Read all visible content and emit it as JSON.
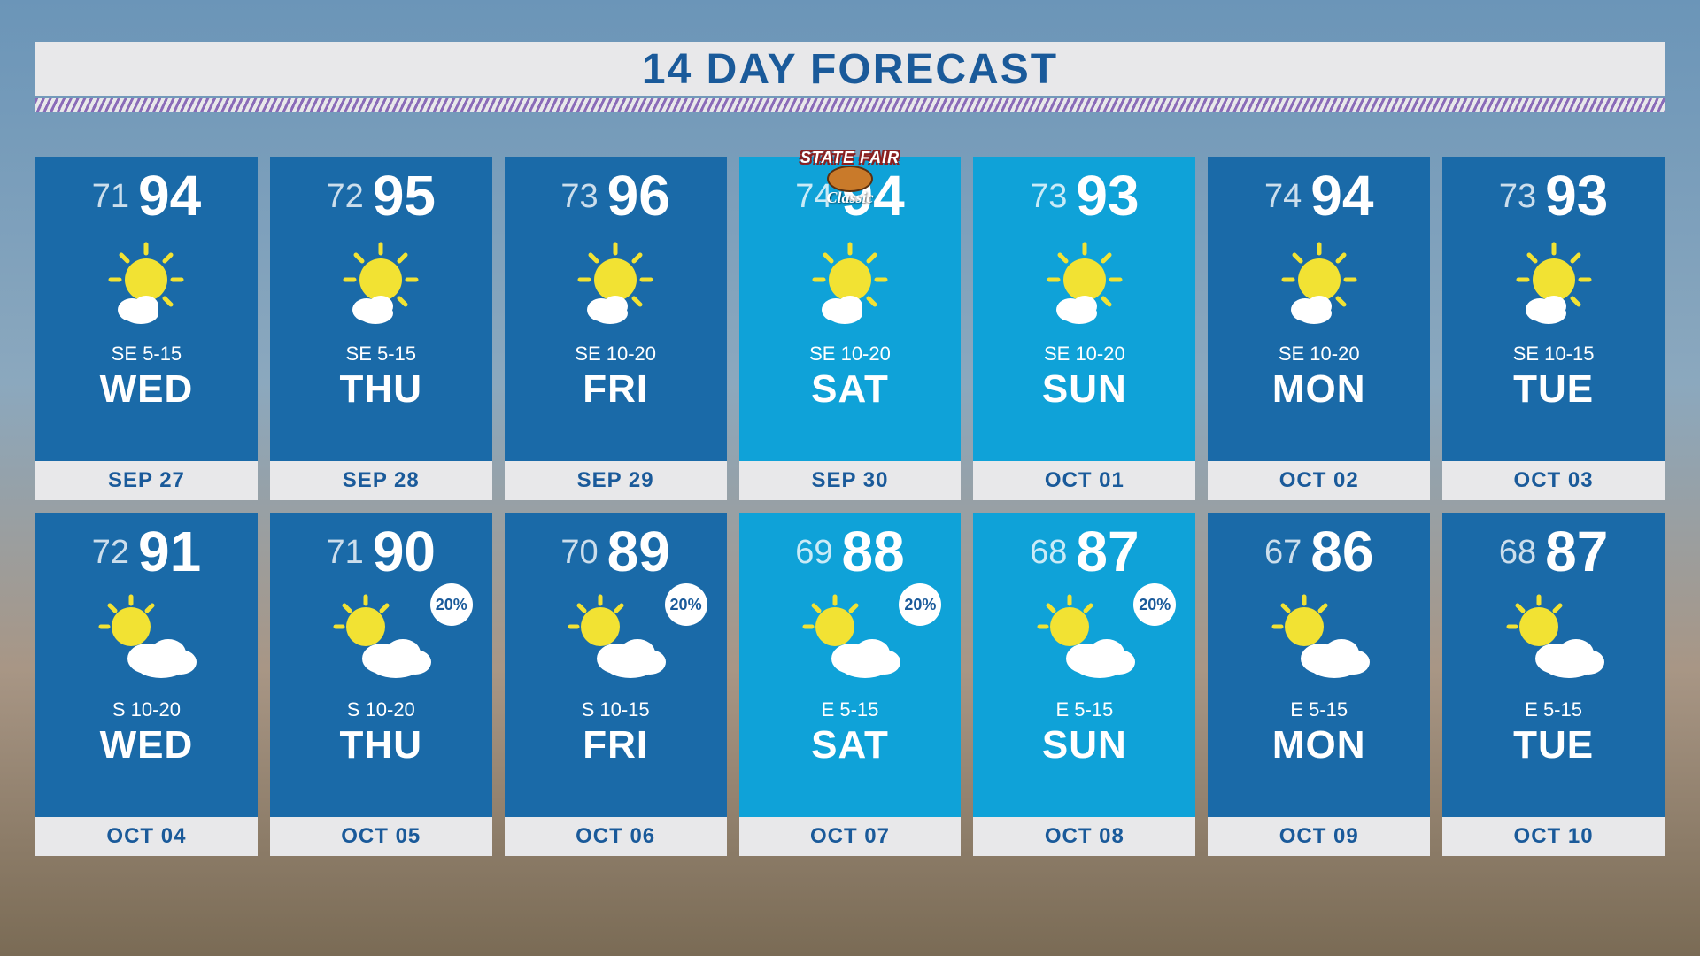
{
  "title": "14 DAY FORECAST",
  "badge": {
    "top": "STATE FAIR",
    "bottom": "Classic"
  },
  "colors": {
    "weekday_bg": "#1a6aa8",
    "weekend_bg": "#0fa2d8",
    "footer_bg": "#e8e8ea",
    "text_blue": "#1a5a9a",
    "white": "#ffffff",
    "sun_yellow": "#f2e233",
    "cloud_white": "#ffffff"
  },
  "days": [
    {
      "low": 71,
      "high": 94,
      "icon": "mostly-sunny",
      "precip": null,
      "wind": "SE 5-15",
      "day": "WED",
      "date": "SEP 27",
      "weekend": false
    },
    {
      "low": 72,
      "high": 95,
      "icon": "mostly-sunny",
      "precip": null,
      "wind": "SE 5-15",
      "day": "THU",
      "date": "SEP 28",
      "weekend": false
    },
    {
      "low": 73,
      "high": 96,
      "icon": "mostly-sunny",
      "precip": null,
      "wind": "SE 10-20",
      "day": "FRI",
      "date": "SEP 29",
      "weekend": false
    },
    {
      "low": 74,
      "high": 94,
      "icon": "mostly-sunny",
      "precip": null,
      "wind": "SE 10-20",
      "day": "SAT",
      "date": "SEP 30",
      "weekend": true
    },
    {
      "low": 73,
      "high": 93,
      "icon": "mostly-sunny",
      "precip": null,
      "wind": "SE 10-20",
      "day": "SUN",
      "date": "OCT 01",
      "weekend": true
    },
    {
      "low": 74,
      "high": 94,
      "icon": "mostly-sunny",
      "precip": null,
      "wind": "SE 10-20",
      "day": "MON",
      "date": "OCT 02",
      "weekend": false
    },
    {
      "low": 73,
      "high": 93,
      "icon": "mostly-sunny",
      "precip": null,
      "wind": "SE 10-15",
      "day": "TUE",
      "date": "OCT 03",
      "weekend": false
    },
    {
      "low": 72,
      "high": 91,
      "icon": "partly-cloudy",
      "precip": null,
      "wind": "S 10-20",
      "day": "WED",
      "date": "OCT 04",
      "weekend": false
    },
    {
      "low": 71,
      "high": 90,
      "icon": "partly-cloudy",
      "precip": "20%",
      "wind": "S 10-20",
      "day": "THU",
      "date": "OCT 05",
      "weekend": false
    },
    {
      "low": 70,
      "high": 89,
      "icon": "partly-cloudy",
      "precip": "20%",
      "wind": "S 10-15",
      "day": "FRI",
      "date": "OCT 06",
      "weekend": false
    },
    {
      "low": 69,
      "high": 88,
      "icon": "partly-cloudy",
      "precip": "20%",
      "wind": "E 5-15",
      "day": "SAT",
      "date": "OCT 07",
      "weekend": true
    },
    {
      "low": 68,
      "high": 87,
      "icon": "partly-cloudy",
      "precip": "20%",
      "wind": "E 5-15",
      "day": "SUN",
      "date": "OCT 08",
      "weekend": true
    },
    {
      "low": 67,
      "high": 86,
      "icon": "partly-cloudy",
      "precip": null,
      "wind": "E 5-15",
      "day": "MON",
      "date": "OCT 09",
      "weekend": false
    },
    {
      "low": 68,
      "high": 87,
      "icon": "partly-cloudy",
      "precip": null,
      "wind": "E 5-15",
      "day": "TUE",
      "date": "OCT 10",
      "weekend": false
    }
  ]
}
